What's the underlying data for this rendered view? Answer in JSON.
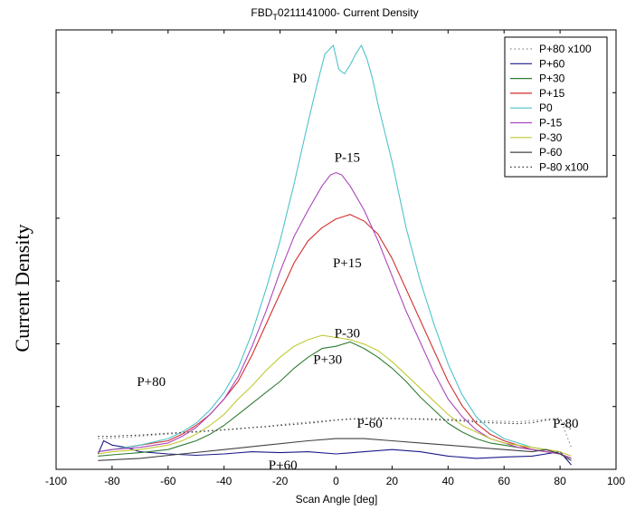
{
  "chart_data": {
    "type": "line",
    "title": "FBD_T0211141000- Current Density",
    "title_parts": {
      "main": "FBD",
      "sub": "T",
      "rest": "0211141000- Current Density"
    },
    "xlabel": "Scan Angle [deg]",
    "ylabel": "Current Density",
    "xlim": [
      -100,
      100
    ],
    "ylim": [
      0,
      1
    ],
    "x_ticks": [
      "-100",
      "-80",
      "-60",
      "-40",
      "-20",
      "0",
      "20",
      "40",
      "60",
      "80",
      "100"
    ],
    "grid": false,
    "legend_position": "top-right",
    "series": [
      {
        "name": "P+80 x100",
        "color": "#888888",
        "dash": "dotted",
        "x": [
          -85,
          -75,
          -65,
          -55,
          -45,
          -35,
          -25,
          -15,
          -5,
          5,
          15,
          25,
          35,
          45,
          55,
          65,
          75,
          80,
          84
        ],
        "y": [
          0.07,
          0.073,
          0.078,
          0.082,
          0.087,
          0.093,
          0.098,
          0.105,
          0.11,
          0.115,
          0.115,
          0.115,
          0.115,
          0.113,
          0.11,
          0.108,
          0.114,
          0.117,
          0.05
        ]
      },
      {
        "name": "P+60",
        "color": "#1a1a8a",
        "dash": "solid",
        "x": [
          -85,
          -83,
          -80,
          -75,
          -70,
          -60,
          -50,
          -40,
          -30,
          -20,
          -10,
          0,
          10,
          20,
          30,
          40,
          50,
          60,
          70,
          75,
          80,
          84
        ],
        "y": [
          0.035,
          0.065,
          0.055,
          0.05,
          0.04,
          0.035,
          0.032,
          0.035,
          0.04,
          0.038,
          0.04,
          0.035,
          0.04,
          0.045,
          0.04,
          0.03,
          0.025,
          0.028,
          0.03,
          0.035,
          0.04,
          0.01
        ]
      },
      {
        "name": "P+30",
        "color": "#2e7d32",
        "dash": "solid",
        "x": [
          -85,
          -80,
          -70,
          -60,
          -55,
          -50,
          -45,
          -40,
          -35,
          -30,
          -25,
          -20,
          -15,
          -10,
          -5,
          0,
          5,
          10,
          15,
          20,
          25,
          30,
          35,
          40,
          45,
          50,
          55,
          60,
          65,
          70,
          75,
          80,
          84
        ],
        "y": [
          0.03,
          0.033,
          0.038,
          0.045,
          0.055,
          0.065,
          0.08,
          0.1,
          0.125,
          0.15,
          0.175,
          0.2,
          0.23,
          0.255,
          0.275,
          0.28,
          0.29,
          0.275,
          0.255,
          0.23,
          0.2,
          0.165,
          0.135,
          0.105,
          0.085,
          0.07,
          0.06,
          0.055,
          0.05,
          0.045,
          0.04,
          0.035,
          0.025
        ]
      },
      {
        "name": "P+15",
        "color": "#d32f2f",
        "dash": "solid",
        "x": [
          -85,
          -80,
          -70,
          -60,
          -55,
          -50,
          -45,
          -40,
          -35,
          -30,
          -25,
          -20,
          -15,
          -10,
          -5,
          0,
          5,
          10,
          15,
          20,
          25,
          30,
          35,
          40,
          45,
          50,
          55,
          60,
          65,
          70,
          75,
          80,
          84
        ],
        "y": [
          0.04,
          0.045,
          0.055,
          0.065,
          0.08,
          0.1,
          0.125,
          0.16,
          0.2,
          0.26,
          0.33,
          0.4,
          0.47,
          0.52,
          0.55,
          0.57,
          0.58,
          0.565,
          0.535,
          0.48,
          0.41,
          0.34,
          0.27,
          0.2,
          0.145,
          0.105,
          0.08,
          0.065,
          0.055,
          0.045,
          0.04,
          0.035,
          0.025
        ]
      },
      {
        "name": "P0",
        "color": "#4fc3c9",
        "dash": "solid",
        "x": [
          -85,
          -80,
          -70,
          -60,
          -55,
          -50,
          -45,
          -40,
          -35,
          -30,
          -25,
          -20,
          -15,
          -10,
          -7,
          -4,
          -1,
          1,
          3,
          5,
          7,
          9,
          11,
          13,
          15,
          20,
          25,
          30,
          35,
          40,
          45,
          50,
          55,
          60,
          65,
          70,
          75,
          80,
          84
        ],
        "y": [
          0.04,
          0.045,
          0.055,
          0.07,
          0.085,
          0.105,
          0.135,
          0.175,
          0.23,
          0.31,
          0.41,
          0.52,
          0.65,
          0.79,
          0.87,
          0.945,
          0.965,
          0.91,
          0.9,
          0.92,
          0.945,
          0.965,
          0.935,
          0.89,
          0.83,
          0.7,
          0.55,
          0.43,
          0.33,
          0.24,
          0.17,
          0.12,
          0.09,
          0.07,
          0.06,
          0.05,
          0.045,
          0.035,
          0.02
        ]
      },
      {
        "name": "P-15",
        "color": "#ab47bc",
        "dash": "solid",
        "x": [
          -85,
          -80,
          -70,
          -60,
          -55,
          -50,
          -45,
          -40,
          -35,
          -30,
          -25,
          -20,
          -15,
          -10,
          -5,
          -2,
          0,
          2,
          5,
          10,
          15,
          20,
          25,
          30,
          35,
          40,
          45,
          50,
          55,
          60,
          65,
          70,
          75,
          80,
          84
        ],
        "y": [
          0.04,
          0.045,
          0.05,
          0.06,
          0.075,
          0.095,
          0.125,
          0.16,
          0.21,
          0.28,
          0.36,
          0.45,
          0.53,
          0.59,
          0.645,
          0.67,
          0.675,
          0.67,
          0.645,
          0.59,
          0.52,
          0.44,
          0.36,
          0.29,
          0.22,
          0.16,
          0.12,
          0.09,
          0.07,
          0.06,
          0.05,
          0.045,
          0.04,
          0.035,
          0.025
        ]
      },
      {
        "name": "P-30",
        "color": "#c0ca33",
        "dash": "solid",
        "x": [
          -85,
          -80,
          -70,
          -60,
          -55,
          -50,
          -45,
          -40,
          -35,
          -30,
          -25,
          -20,
          -15,
          -10,
          -5,
          0,
          5,
          10,
          15,
          20,
          25,
          30,
          35,
          40,
          45,
          50,
          55,
          60,
          65,
          70,
          75,
          80,
          84
        ],
        "y": [
          0.035,
          0.04,
          0.045,
          0.055,
          0.065,
          0.08,
          0.1,
          0.125,
          0.16,
          0.19,
          0.225,
          0.255,
          0.28,
          0.295,
          0.305,
          0.3,
          0.295,
          0.285,
          0.27,
          0.245,
          0.215,
          0.185,
          0.155,
          0.125,
          0.1,
          0.085,
          0.07,
          0.06,
          0.055,
          0.05,
          0.045,
          0.04,
          0.03
        ]
      },
      {
        "name": "P-60",
        "color": "#424242",
        "dash": "solid",
        "x": [
          -85,
          -70,
          -55,
          -40,
          -25,
          -10,
          0,
          10,
          20,
          30,
          40,
          50,
          60,
          70,
          75,
          80,
          84
        ],
        "y": [
          0.02,
          0.025,
          0.035,
          0.045,
          0.055,
          0.065,
          0.07,
          0.07,
          0.065,
          0.06,
          0.055,
          0.05,
          0.045,
          0.04,
          0.045,
          0.035,
          0.02
        ]
      },
      {
        "name": "P-80 x100",
        "color": "#333333",
        "dash": "dotted",
        "x": [
          -85,
          -80,
          -75,
          -70,
          -65,
          -60,
          -55,
          -50,
          -45,
          -40,
          -35,
          -30,
          -25,
          -20,
          -15,
          -10,
          -5,
          0,
          5,
          10,
          15,
          20,
          25,
          30,
          35,
          40,
          45,
          50,
          55,
          60,
          65,
          70,
          75,
          80,
          84
        ],
        "y": [
          0.075,
          0.075,
          0.077,
          0.078,
          0.08,
          0.082,
          0.084,
          0.086,
          0.088,
          0.09,
          0.092,
          0.095,
          0.097,
          0.1,
          0.102,
          0.105,
          0.108,
          0.112,
          0.114,
          0.116,
          0.117,
          0.116,
          0.115,
          0.114,
          0.113,
          0.112,
          0.11,
          0.108,
          0.106,
          0.105,
          0.104,
          0.106,
          0.112,
          0.114,
          0.09
        ]
      }
    ],
    "annotations": [
      {
        "text": "P0",
        "x": -13,
        "y": 0.88
      },
      {
        "text": "P-15",
        "x": 4,
        "y": 0.7
      },
      {
        "text": "P+15",
        "x": 4,
        "y": 0.46
      },
      {
        "text": "P-30",
        "x": 4,
        "y": 0.3
      },
      {
        "text": "P+30",
        "x": -3,
        "y": 0.24
      },
      {
        "text": "P+80",
        "x": -66,
        "y": 0.19
      },
      {
        "text": "P-60",
        "x": 12,
        "y": 0.095
      },
      {
        "text": "P-80",
        "x": 82,
        "y": 0.095
      },
      {
        "text": "P+60",
        "x": -19,
        "y": 0.0
      }
    ]
  }
}
